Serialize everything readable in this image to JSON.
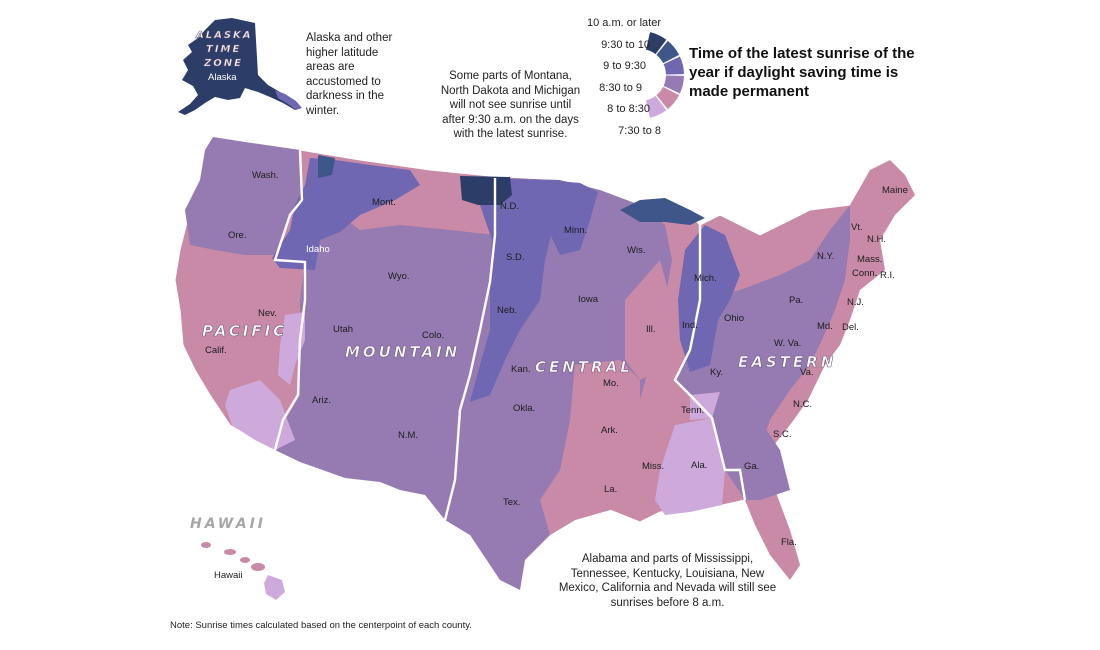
{
  "legend": {
    "title": "Time of the latest sunrise of the year if daylight saving time is made permanent",
    "items": [
      {
        "label": "10 a.m. or later",
        "color": "#2c3d67"
      },
      {
        "label": "9:30 to 10",
        "color": "#3e5689"
      },
      {
        "label": "9 to 9:30",
        "color": "#6f67b2"
      },
      {
        "label": "8:30 to 9",
        "color": "#957bb1"
      },
      {
        "label": "8 to 8:30",
        "color": "#c88aa7"
      },
      {
        "label": "7:30 to 8",
        "color": "#ceaadc"
      }
    ]
  },
  "zones": {
    "alaska": "ALASKA TIME ZONE",
    "pacific": "PACIFIC",
    "mountain": "MOUNTAIN",
    "central": "CENTRAL",
    "eastern": "EASTERN",
    "hawaii": "HAWAII"
  },
  "states": {
    "alaska": "Alaska",
    "hawaii": "Hawaii",
    "wa": "Wash.",
    "or": "Ore.",
    "ca": "Calif.",
    "nv": "Nev.",
    "id": "Idaho",
    "mt": "Mont.",
    "wy": "Wyo.",
    "ut": "Utah",
    "co": "Colo.",
    "az": "Ariz.",
    "nm": "N.M.",
    "nd": "N.D.",
    "sd": "S.D.",
    "ne": "Neb.",
    "ks": "Kan.",
    "ok": "Okla.",
    "tx": "Tex.",
    "mn": "Minn.",
    "ia": "Iowa",
    "mo": "Mo.",
    "ar": "Ark.",
    "la": "La.",
    "ms": "Miss.",
    "al": "Ala.",
    "tn": "Tenn.",
    "ky": "Ky.",
    "il": "Ill.",
    "wi": "Wis.",
    "mi": "Mich.",
    "in": "Ind.",
    "oh": "Ohio",
    "ga": "Ga.",
    "fl": "Fla.",
    "sc": "S.C.",
    "nc": "N.C.",
    "va": "Va.",
    "wv": "W. Va.",
    "pa": "Pa.",
    "ny": "N.Y.",
    "md": "Md.",
    "de": "Del.",
    "nj": "N.J.",
    "ct": "Conn.",
    "ri": "R.I.",
    "ma": "Mass.",
    "vt": "Vt.",
    "nh": "N.H.",
    "me": "Maine"
  },
  "annotations": {
    "alaska": "Alaska and other higher latitude areas are accustomed to darkness in the winter.",
    "north": "Some parts of Montana, North Dakota and Michigan will not see sunrise until after 9:30 a.m. on the days with the latest sunrise.",
    "south": "Alabama and parts of Mississippi, Tennessee, Kentucky, Louisiana, New Mexico, California and Nevada will still see sunrises before 8 a.m."
  },
  "note": "Note: Sunrise times calculated based on the centerpoint of each county."
}
